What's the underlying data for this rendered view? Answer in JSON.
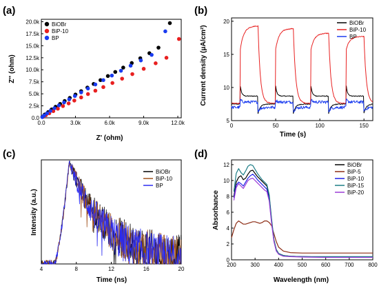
{
  "chart_data": [
    {
      "panel": "(a)",
      "type": "scatter",
      "xlabel": "Z' (ohm)",
      "ylabel": "Z'' (ohm)",
      "xlim": [
        0,
        12300
      ],
      "ylim": [
        0,
        20500
      ],
      "xticks": [
        0,
        3000,
        6000,
        9000,
        12000
      ],
      "xtick_labels": [
        "0.0",
        "3.0k",
        "6.0k",
        "9.0k",
        "12.0k"
      ],
      "yticks": [
        0,
        2500,
        5000,
        7500,
        10000,
        12500,
        15000,
        17500,
        20000
      ],
      "ytick_labels": [
        "0.0",
        "2.5k",
        "5.0k",
        "7.5k",
        "10.0k",
        "12.5k",
        "15.0k",
        "17.5k",
        "20.0k"
      ],
      "legend_position": "top-left",
      "series": [
        {
          "name": "BiOBr",
          "color": "#000000",
          "x": [
            100,
            300,
            600,
            900,
            1250,
            1650,
            2050,
            2500,
            3000,
            3500,
            4050,
            4600,
            5200,
            5850,
            6500,
            7200,
            7950,
            8700,
            9500,
            10300,
            11300
          ],
          "y": [
            250,
            700,
            1200,
            1750,
            2300,
            2900,
            3500,
            4150,
            4850,
            5550,
            6300,
            7050,
            7850,
            8700,
            9550,
            10450,
            11400,
            12400,
            13450,
            14600,
            19700
          ]
        },
        {
          "name": "BiP-10",
          "color": "#e82020",
          "x": [
            150,
            400,
            700,
            1050,
            1450,
            1900,
            2400,
            2900,
            3500,
            4100,
            4750,
            5450,
            6250,
            7100,
            8000,
            9000,
            10050,
            11000,
            12100
          ],
          "y": [
            200,
            550,
            950,
            1400,
            1900,
            2450,
            3000,
            3600,
            4250,
            4950,
            5650,
            6400,
            7250,
            8150,
            9100,
            10200,
            11350,
            12500,
            16400
          ]
        },
        {
          "name": "BP",
          "color": "#1a3cf0",
          "x": [
            80,
            250,
            500,
            800,
            1150,
            1550,
            2000,
            2450,
            2950,
            3500,
            4100,
            4750,
            5450,
            6200,
            7000,
            7850,
            8750,
            9700,
            10900
          ],
          "y": [
            150,
            500,
            950,
            1450,
            2000,
            2600,
            3200,
            3850,
            4550,
            5300,
            6100,
            6950,
            7850,
            8800,
            9800,
            10850,
            11950,
            13100,
            18000
          ]
        }
      ]
    },
    {
      "panel": "(b)",
      "type": "line",
      "xlabel": "Time (s)",
      "ylabel": "Current density (μA/cm²)",
      "xlim": [
        0,
        160
      ],
      "ylim": [
        5,
        20.5
      ],
      "xticks": [
        0,
        50,
        100,
        150
      ],
      "yticks": [
        5,
        10,
        15,
        20
      ],
      "legend_position": "top-right",
      "on_times": [
        10,
        50,
        90,
        130
      ],
      "off_times": [
        30,
        70,
        110,
        150
      ],
      "series": [
        {
          "name": "BiOBr",
          "color": "#000000",
          "dark": 7.5,
          "spike": 10.2,
          "plateau": 8.7,
          "dip": 6.1
        },
        {
          "name": "BiP-10",
          "color": "#e82020",
          "dark": 7.6,
          "spike": 15.8,
          "plateau": [
            19.3,
            18.9,
            18.2,
            17.7
          ],
          "dip": 7.3
        },
        {
          "name": "BP",
          "color": "#1a3cf0",
          "dark": 7.0,
          "spike": 8.2,
          "plateau": 7.8,
          "dip": 6.4
        }
      ]
    },
    {
      "panel": "(c)",
      "type": "line",
      "xlabel": "Time (ns)",
      "ylabel": "Intensity (a.u.)",
      "xlim": [
        4,
        20
      ],
      "xticks": [
        4,
        8,
        12,
        16,
        20
      ],
      "legend_position": "top-right",
      "onset": 5.5,
      "peak_time": 7.2,
      "series": [
        {
          "name": "BiOBr",
          "color": "#000000",
          "decay": 4.4
        },
        {
          "name": "BiP-10",
          "color": "#a0521d",
          "decay": 4.2
        },
        {
          "name": "BP",
          "color": "#2a2af0",
          "decay": 4.0
        }
      ]
    },
    {
      "panel": "(d)",
      "type": "line",
      "xlabel": "Wavelength (nm)",
      "ylabel": "Absorbance",
      "xlim": [
        200,
        800
      ],
      "ylim": [
        0,
        12.6
      ],
      "xticks": [
        200,
        300,
        400,
        500,
        600,
        700,
        800
      ],
      "yticks": [
        0,
        2,
        4,
        6,
        8,
        10,
        12
      ],
      "legend_position": "top-right",
      "series": [
        {
          "name": "BiOBr",
          "color": "#000000",
          "x": [
            210,
            220,
            230,
            240,
            250,
            260,
            270,
            280,
            290,
            300,
            310,
            320,
            330,
            340,
            350,
            360,
            370,
            380,
            390,
            400,
            420,
            450,
            500,
            600,
            700,
            800
          ],
          "y": [
            8.0,
            9.8,
            10.4,
            10.6,
            10.1,
            10.3,
            10.8,
            11.2,
            11.3,
            10.9,
            10.5,
            10.2,
            9.9,
            9.6,
            9.3,
            8.0,
            5.0,
            2.5,
            1.3,
            0.8,
            0.55,
            0.45,
            0.4,
            0.35,
            0.35,
            0.35
          ]
        },
        {
          "name": "BiP-5",
          "color": "#8b2a12",
          "x": [
            200,
            210,
            220,
            230,
            240,
            250,
            260,
            270,
            280,
            290,
            300,
            310,
            320,
            330,
            340,
            350,
            360,
            370,
            380,
            390,
            400,
            420,
            450,
            500,
            600,
            700,
            800
          ],
          "y": [
            2.8,
            3.8,
            4.6,
            4.9,
            4.7,
            4.5,
            4.5,
            4.6,
            4.7,
            4.8,
            4.8,
            4.7,
            4.6,
            4.7,
            4.9,
            4.9,
            4.7,
            4.3,
            3.3,
            2.3,
            1.6,
            1.1,
            0.9,
            0.85,
            0.85,
            0.85,
            0.85
          ]
        },
        {
          "name": "BiP-10",
          "color": "#1e1ee6",
          "x": [
            210,
            220,
            230,
            240,
            250,
            260,
            270,
            280,
            290,
            300,
            310,
            320,
            330,
            340,
            350,
            360,
            370,
            380,
            390,
            400,
            420,
            450,
            500,
            600,
            700,
            800
          ],
          "y": [
            7.8,
            9.4,
            9.8,
            9.6,
            9.3,
            9.8,
            10.3,
            10.6,
            10.8,
            10.5,
            10.1,
            9.8,
            9.5,
            9.2,
            8.9,
            7.6,
            4.8,
            2.4,
            1.2,
            0.75,
            0.5,
            0.45,
            0.4,
            0.35,
            0.35,
            0.35
          ]
        },
        {
          "name": "BiP-15",
          "color": "#1c7d86",
          "x": [
            210,
            220,
            230,
            240,
            250,
            260,
            270,
            280,
            290,
            300,
            310,
            320,
            330,
            340,
            350,
            360,
            370,
            380,
            390,
            400,
            420,
            450,
            500,
            600,
            700,
            800
          ],
          "y": [
            8.6,
            10.9,
            11.5,
            11.0,
            10.7,
            11.2,
            11.8,
            12.0,
            11.9,
            11.4,
            10.9,
            10.5,
            10.1,
            9.8,
            9.5,
            8.2,
            5.2,
            2.6,
            1.3,
            0.8,
            0.55,
            0.45,
            0.4,
            0.4,
            0.4,
            0.4
          ]
        },
        {
          "name": "BiP-20",
          "color": "#9b3ad6",
          "x": [
            210,
            220,
            230,
            240,
            250,
            260,
            270,
            280,
            290,
            300,
            310,
            320,
            330,
            340,
            350,
            360,
            370,
            380,
            390,
            400,
            420,
            450,
            500,
            600,
            700,
            800
          ],
          "y": [
            7.5,
            9.1,
            9.6,
            9.3,
            9.0,
            9.5,
            10.0,
            10.2,
            10.3,
            10.0,
            9.7,
            9.4,
            9.1,
            8.8,
            8.6,
            7.4,
            4.6,
            2.3,
            1.1,
            0.7,
            0.45,
            0.4,
            0.35,
            0.3,
            0.3,
            0.3
          ]
        }
      ]
    }
  ]
}
